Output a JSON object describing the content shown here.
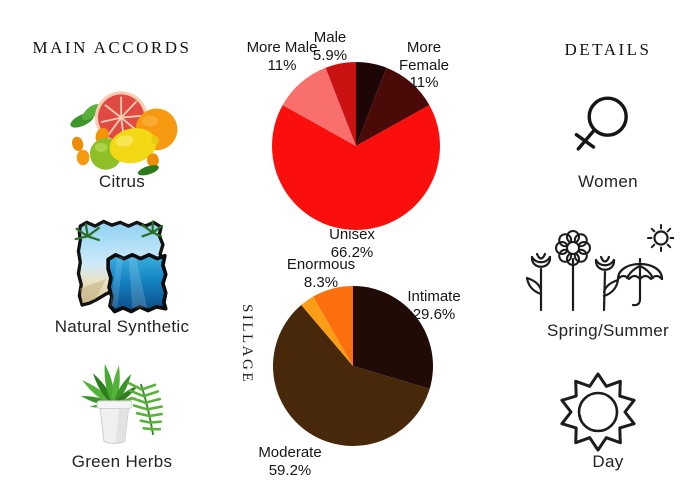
{
  "left_panel": {
    "header": "MAIN ACCORDS",
    "items": [
      {
        "label": "Citrus",
        "image": "citrus-fruits-photo"
      },
      {
        "label": "Natural Synthetic",
        "image": "beach-and-underwater-torn-paper-collage-photo"
      },
      {
        "label": "Green Herbs",
        "image": "potted-fern-plant-photo"
      }
    ]
  },
  "right_panel": {
    "header": "DETAILS",
    "items": [
      {
        "label": "Women",
        "icon": "female-gender-symbol-icon"
      },
      {
        "label": "Spring/Summer",
        "icon": "flowers-umbrella-sun-icon"
      },
      {
        "label": "Day",
        "icon": "sun-icon"
      }
    ]
  },
  "chart_data": [
    {
      "id": "gender",
      "type": "pie",
      "start_angle": "top",
      "direction": "clockwise",
      "legend": "none",
      "labels_position": "outside",
      "segments": [
        {
          "label": "",
          "pct_text": "",
          "value": 5.9,
          "color": "#1f0606",
          "label_shown": false
        },
        {
          "label": "More Female",
          "pct_text": "11%",
          "value": 11,
          "color": "#490a08",
          "label_shown": true
        },
        {
          "label": "Unisex",
          "pct_text": "66.2%",
          "value": 66.2,
          "color": "#fa0f0d",
          "label_shown": true
        },
        {
          "label": "More Male",
          "pct_text": "11%",
          "value": 11,
          "color": "#f96f6b",
          "label_shown": true
        },
        {
          "label": "Male",
          "pct_text": "5.9%",
          "value": 5.9,
          "color": "#cb1212",
          "label_shown": true
        }
      ]
    },
    {
      "id": "sillage",
      "type": "pie",
      "axis_label": "SILLAGE",
      "start_angle": "top",
      "direction": "clockwise",
      "legend": "none",
      "labels_position": "outside",
      "segments": [
        {
          "label": "Intimate",
          "pct_text": "29.6%",
          "value": 29.6,
          "color": "#200b06",
          "label_shown": true
        },
        {
          "label": "Moderate",
          "pct_text": "59.2%",
          "value": 59.2,
          "color": "#47280a",
          "label_shown": true
        },
        {
          "label": "",
          "pct_text": "",
          "value": 2.9,
          "color": "#fb9e15",
          "label_shown": false
        },
        {
          "label": "Enormous",
          "pct_text": "8.3%",
          "value": 8.3,
          "color": "#fb6f0e",
          "label_shown": true
        }
      ]
    }
  ]
}
